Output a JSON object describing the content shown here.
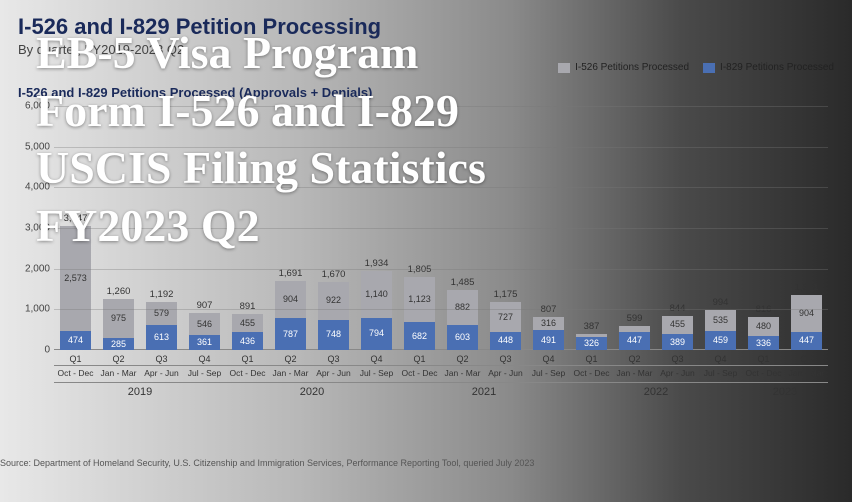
{
  "title": "I-526 and I-829 Petition Processing",
  "subtitle": "By quarter, FY2019-2023 Q2",
  "chart_title": "I-526 and I-829 Petitions Processed (Approvals + Denials)",
  "source": "Source: Department of Homeland Security, U.S. Citizenship and Immigration Services, Performance Reporting Tool, queried July 2023",
  "overlay_lines": [
    "EB-5 Visa Program",
    "Form I-526 and I-829",
    "USCIS Filing Statistics",
    "FY2023 Q2"
  ],
  "legend": [
    {
      "label": "I-526 Petitions Processed",
      "color": "#a8a8ae"
    },
    {
      "label": "I-829 Petitions Processed",
      "color": "#4a6fb3"
    }
  ],
  "chart": {
    "type": "stacked-bar",
    "y_max": 6000,
    "y_ticks": [
      0,
      1000,
      2000,
      3000,
      4000,
      5000,
      6000
    ],
    "y_tick_labels": [
      "0",
      "1,000",
      "2,000",
      "3,000",
      "4,000",
      "5,000",
      "6,000"
    ],
    "background_color": "transparent",
    "grid_color": "rgba(120,120,120,0.35)",
    "series_colors": {
      "i526": "#a8a8ae",
      "i829": "#4a6fb3"
    },
    "bars": [
      {
        "q": "Q1",
        "months": "Oct - Dec",
        "i526": 2573,
        "i829": 474,
        "total": 3047
      },
      {
        "q": "Q2",
        "months": "Jan - Mar",
        "i526": 975,
        "i829": 285,
        "total": 1260
      },
      {
        "q": "Q3",
        "months": "Apr - Jun",
        "i526": 579,
        "i829": 613,
        "total": 1192
      },
      {
        "q": "Q4",
        "months": "Jul - Sep",
        "i526": 546,
        "i829": 361,
        "total": 907
      },
      {
        "q": "Q1",
        "months": "Oct - Dec",
        "i526": 455,
        "i829": 436,
        "total": 891
      },
      {
        "q": "Q2",
        "months": "Jan - Mar",
        "i526": 904,
        "i829": 787,
        "total": 1691
      },
      {
        "q": "Q3",
        "months": "Apr - Jun",
        "i526": 922,
        "i829": 748,
        "total": 1670
      },
      {
        "q": "Q4",
        "months": "Jul - Sep",
        "i526": 1140,
        "i829": 794,
        "total": 1934
      },
      {
        "q": "Q1",
        "months": "Oct - Dec",
        "i526": 1123,
        "i829": 682,
        "total": 1805
      },
      {
        "q": "Q2",
        "months": "Jan - Mar",
        "i526": 882,
        "i829": 603,
        "total": 1485
      },
      {
        "q": "Q3",
        "months": "Apr - Jun",
        "i526": 727,
        "i829": 448,
        "total": 1175
      },
      {
        "q": "Q4",
        "months": "Jul - Sep",
        "i526": 316,
        "i829": 491,
        "total": 807
      },
      {
        "q": "Q1",
        "months": "Oct - Dec",
        "i526": 61,
        "i829": 326,
        "total": 387
      },
      {
        "q": "Q2",
        "months": "Jan - Mar",
        "i526": 152,
        "i829": 447,
        "total": 599
      },
      {
        "q": "Q3",
        "months": "Apr - Jun",
        "i526": 455,
        "i829": 389,
        "total": 844
      },
      {
        "q": "Q4",
        "months": "Jul - Sep",
        "i526": 535,
        "i829": 459,
        "total": 994
      },
      {
        "q": "Q1",
        "months": "Oct - Dec",
        "i526": 480,
        "i829": 336,
        "total": 816
      },
      {
        "q": "Q2",
        "months": "Jan - Mar",
        "i526": 904,
        "i829": 447,
        "total": 1351
      }
    ],
    "year_groups": [
      {
        "label": "2019",
        "span": 4
      },
      {
        "label": "2020",
        "span": 4
      },
      {
        "label": "2021",
        "span": 4
      },
      {
        "label": "2022",
        "span": 4
      },
      {
        "label": "2023",
        "span": 2
      }
    ]
  }
}
